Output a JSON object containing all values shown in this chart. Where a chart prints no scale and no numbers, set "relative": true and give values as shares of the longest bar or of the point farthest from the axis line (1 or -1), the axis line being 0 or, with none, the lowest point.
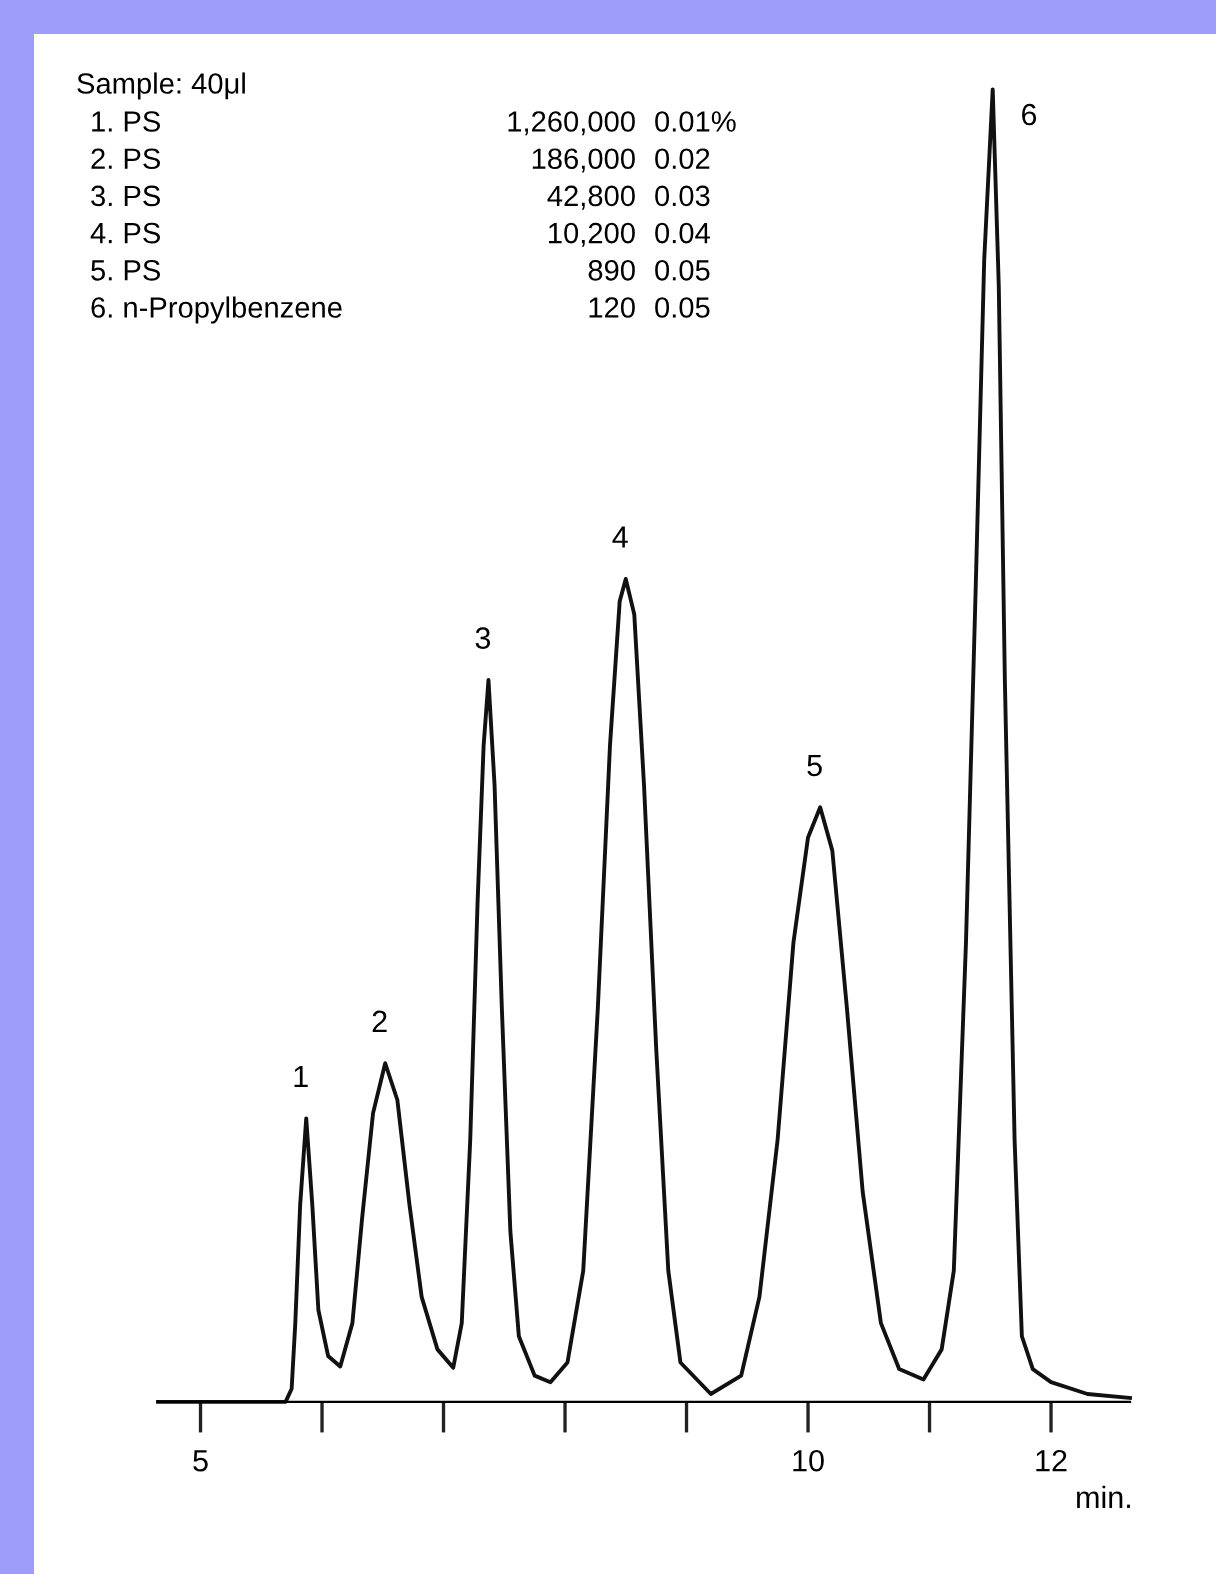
{
  "chart_data": {
    "type": "line",
    "relative": true,
    "x": [
      4.65,
      5.7,
      5.75,
      5.78,
      5.82,
      5.87,
      5.92,
      5.97,
      6.05,
      6.15,
      6.25,
      6.33,
      6.42,
      6.52,
      6.62,
      6.72,
      6.82,
      6.95,
      7.08,
      7.15,
      7.22,
      7.28,
      7.33,
      7.37,
      7.42,
      7.48,
      7.55,
      7.62,
      7.75,
      7.88,
      8.02,
      8.15,
      8.27,
      8.37,
      8.45,
      8.5,
      8.57,
      8.65,
      8.75,
      8.85,
      8.95,
      9.2,
      9.45,
      9.6,
      9.75,
      9.88,
      10.0,
      10.1,
      10.2,
      10.32,
      10.45,
      10.6,
      10.75,
      10.95,
      11.1,
      11.2,
      11.3,
      11.38,
      11.45,
      11.52,
      11.57,
      11.62,
      11.7,
      11.76,
      11.85,
      12.0,
      12.3,
      12.65
    ],
    "series": [
      {
        "color": "#111111",
        "values": [
          0,
          0,
          0.01,
          0.06,
          0.15,
          0.216,
          0.15,
          0.07,
          0.035,
          0.027,
          0.06,
          0.14,
          0.22,
          0.258,
          0.23,
          0.15,
          0.08,
          0.04,
          0.026,
          0.06,
          0.2,
          0.38,
          0.5,
          0.55,
          0.47,
          0.3,
          0.13,
          0.05,
          0.02,
          0.015,
          0.03,
          0.1,
          0.3,
          0.5,
          0.61,
          0.627,
          0.6,
          0.47,
          0.27,
          0.1,
          0.03,
          0.006,
          0.02,
          0.08,
          0.2,
          0.35,
          0.43,
          0.453,
          0.42,
          0.3,
          0.16,
          0.06,
          0.025,
          0.017,
          0.04,
          0.1,
          0.35,
          0.62,
          0.87,
          1.0,
          0.85,
          0.55,
          0.2,
          0.05,
          0.025,
          0.015,
          0.006,
          0.003
        ]
      }
    ],
    "xlim": [
      4.65,
      12.65
    ],
    "xticks": [
      5,
      {
        "value": 6,
        "label": null
      },
      {
        "value": 7,
        "label": null
      },
      {
        "value": 8,
        "label": null
      },
      {
        "value": 9,
        "label": null
      },
      10,
      {
        "value": 11,
        "label": null
      },
      12
    ],
    "xlabel": "min.",
    "tick_labels": "x",
    "annotations": [
      {
        "text": "1",
        "x": 5.87,
        "y": 0.216
      },
      {
        "text": "2",
        "x": 6.52,
        "y": 0.258
      },
      {
        "text": "3",
        "x": 7.37,
        "y": 0.55
      },
      {
        "text": "4",
        "x": 8.5,
        "y": 0.627
      },
      {
        "text": "5",
        "x": 10.1,
        "y": 0.453
      },
      {
        "text": "6",
        "x": 11.52,
        "y": 1.0
      },
      "Sample: 40μl",
      "1. PS",
      "1,260,000",
      "0.01%",
      "2. PS",
      "186,000",
      "0.02",
      "3. PS",
      "42,800",
      "0.03",
      "4. PS",
      "10,200",
      "0.04",
      "5. PS",
      "890",
      "0.05",
      "6. n-Propylbenzene",
      "120",
      "0.05"
    ]
  }
}
